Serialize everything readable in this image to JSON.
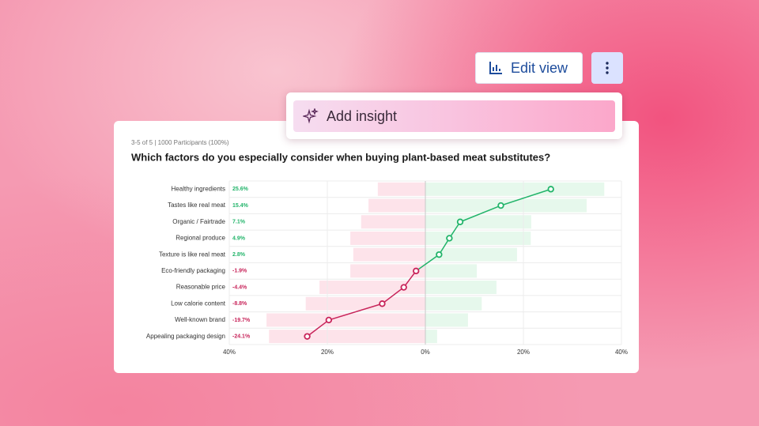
{
  "toolbar": {
    "edit_view": "Edit view",
    "add_insight": "Add insight"
  },
  "chart_data": {
    "type": "bar",
    "orientation": "horizontal",
    "subtitle": "3-5 of 5 | 1000 Participants (100%)",
    "title": "Which factors do you especially consider when buying plant-based meat substitutes?",
    "categories": [
      "Healthy ingredients",
      "Tastes like real meat",
      "Organic / Fairtrade",
      "Regional produce",
      "Texture is like real meat",
      "Eco-friendly packaging",
      "Reasonable price",
      "Low calorie content",
      "Well-known brand",
      "Appealing packaging design"
    ],
    "series": [
      {
        "color": "#e6f8ec",
        "values": [
          36.5,
          32.9,
          21.6,
          21.5,
          18.7,
          10.5,
          14.5,
          11.5,
          8.7,
          2.4
        ]
      },
      {
        "color": "#fde3ea",
        "values": [
          -9.7,
          -11.6,
          -13.1,
          -15.3,
          -14.7,
          -15.3,
          -21.6,
          -24.4,
          -32.4,
          -31.9
        ]
      },
      {
        "type": "line",
        "positive_color": "#22b46a",
        "negative_color": "#c8245a",
        "values": [
          25.6,
          15.4,
          7.1,
          4.9,
          2.8,
          -1.9,
          -4.4,
          -8.8,
          -19.7,
          -24.1
        ],
        "value_labels": [
          "25.6%",
          "15.4%",
          "7.1%",
          "4.9%",
          "2.8%",
          "-1.9%",
          "-4.4%",
          "-8.8%",
          "-19.7%",
          "-24.1%"
        ]
      }
    ],
    "xlim": [
      -40,
      40
    ],
    "xticks": [
      {
        "value": -40,
        "label": "40%"
      },
      {
        "value": -20,
        "label": "20%"
      },
      {
        "value": 0,
        "label": "0%"
      },
      {
        "value": 20,
        "label": "20%"
      },
      {
        "value": 40,
        "label": "40%"
      }
    ],
    "grid": true
  }
}
